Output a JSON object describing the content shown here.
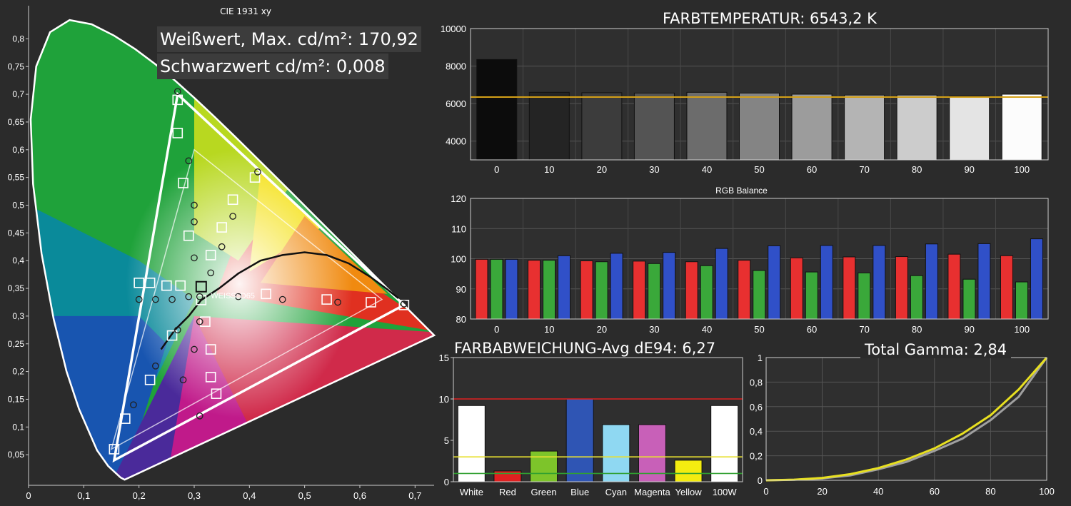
{
  "chart_data": [
    {
      "type": "scatter",
      "title": "CIE 1931 xy",
      "overlay_text": [
        "Weißwert, Max. cd/m²: 170,92",
        "Schwarzwert cd/m²: 0,008"
      ],
      "whitepoint_label": "WEISS: D65",
      "x_ticks": [
        "0",
        "0,1",
        "0,2",
        "0,3",
        "0,4",
        "0,5",
        "0,6",
        "0,7"
      ],
      "y_ticks": [
        "0,05",
        "0,1",
        "0,15",
        "0,2",
        "0,25",
        "0,3",
        "0,35",
        "0,4",
        "0,45",
        "0,5",
        "0,55",
        "0,6",
        "0,65",
        "0,7",
        "0,75",
        "0,8"
      ],
      "xlim": [
        0,
        0.75
      ],
      "ylim": [
        0,
        0.84
      ],
      "target_gamut": [
        [
          0.64,
          0.33
        ],
        [
          0.3,
          0.6
        ],
        [
          0.15,
          0.06
        ]
      ],
      "measured_gamut": [
        [
          0.68,
          0.32
        ],
        [
          0.27,
          0.7
        ],
        [
          0.155,
          0.04
        ]
      ],
      "target_points": [
        [
          0.27,
          0.69
        ],
        [
          0.27,
          0.63
        ],
        [
          0.28,
          0.54
        ],
        [
          0.29,
          0.445
        ],
        [
          0.33,
          0.41
        ],
        [
          0.35,
          0.46
        ],
        [
          0.37,
          0.51
        ],
        [
          0.41,
          0.55
        ],
        [
          0.2,
          0.36
        ],
        [
          0.22,
          0.36
        ],
        [
          0.25,
          0.355
        ],
        [
          0.275,
          0.355
        ],
        [
          0.3127,
          0.329
        ],
        [
          0.43,
          0.34
        ],
        [
          0.54,
          0.33
        ],
        [
          0.62,
          0.325
        ],
        [
          0.68,
          0.32
        ],
        [
          0.26,
          0.265
        ],
        [
          0.32,
          0.29
        ],
        [
          0.33,
          0.24
        ],
        [
          0.33,
          0.19
        ],
        [
          0.34,
          0.16
        ],
        [
          0.22,
          0.185
        ],
        [
          0.175,
          0.115
        ],
        [
          0.155,
          0.06
        ]
      ],
      "measured_points": [
        [
          0.27,
          0.705
        ],
        [
          0.29,
          0.58
        ],
        [
          0.3,
          0.5
        ],
        [
          0.3,
          0.47
        ],
        [
          0.3,
          0.405
        ],
        [
          0.33,
          0.378
        ],
        [
          0.35,
          0.425
        ],
        [
          0.37,
          0.48
        ],
        [
          0.415,
          0.56
        ],
        [
          0.2,
          0.33
        ],
        [
          0.23,
          0.33
        ],
        [
          0.26,
          0.33
        ],
        [
          0.29,
          0.335
        ],
        [
          0.31,
          0.335
        ],
        [
          0.38,
          0.335
        ],
        [
          0.46,
          0.33
        ],
        [
          0.56,
          0.325
        ],
        [
          0.68,
          0.322
        ],
        [
          0.27,
          0.275
        ],
        [
          0.31,
          0.29
        ],
        [
          0.3,
          0.24
        ],
        [
          0.28,
          0.185
        ],
        [
          0.31,
          0.12
        ],
        [
          0.23,
          0.21
        ],
        [
          0.19,
          0.14
        ]
      ],
      "colors": {
        "background": "#2b2b2b",
        "locus": "#ffffff"
      }
    },
    {
      "type": "bar",
      "title": "FARBTEMPERATUR: 6543,2 K",
      "categories": [
        "0",
        "10",
        "20",
        "30",
        "40",
        "50",
        "60",
        "70",
        "80",
        "90",
        "100"
      ],
      "values": [
        8350,
        6600,
        6580,
        6560,
        6600,
        6560,
        6500,
        6450,
        6450,
        6400,
        6500
      ],
      "reference_line": 6350,
      "ylim": [
        3000,
        10000
      ],
      "y_ticks": [
        "4000",
        "6000",
        "8000",
        "10000"
      ],
      "colors": {
        "reference": "#d4a017"
      }
    },
    {
      "type": "bar",
      "title": "RGB Balance",
      "categories": [
        "0",
        "10",
        "20",
        "30",
        "40",
        "50",
        "60",
        "70",
        "80",
        "90",
        "100"
      ],
      "series": [
        {
          "color": "#e83030",
          "values": [
            99.8,
            99.5,
            99.3,
            99.2,
            99.0,
            99.5,
            100.3,
            100.6,
            100.7,
            101.5,
            101.0
          ]
        },
        {
          "color": "#3aa83a",
          "values": [
            99.8,
            99.5,
            99.0,
            98.4,
            97.7,
            96.1,
            95.6,
            95.3,
            94.4,
            93.2,
            92.3
          ]
        },
        {
          "color": "#3050c8",
          "values": [
            99.8,
            101.0,
            101.8,
            102.1,
            103.4,
            104.3,
            104.4,
            104.4,
            104.9,
            105.0,
            106.6
          ]
        }
      ],
      "ylim": [
        80,
        120
      ],
      "y_ticks": [
        "80",
        "90",
        "100",
        "110",
        "120"
      ]
    },
    {
      "type": "bar",
      "title": "FARBABWEICHUNG-Avg dE94: 6,27",
      "categories": [
        "White",
        "Red",
        "Green",
        "Blue",
        "Cyan",
        "Magenta",
        "Yellow",
        "100W"
      ],
      "values": [
        9.2,
        1.3,
        3.7,
        10.0,
        6.9,
        6.9,
        2.6,
        9.2
      ],
      "reference_lines": [
        10,
        3,
        1
      ],
      "ylim": [
        0,
        15
      ],
      "y_ticks": [
        "0",
        "5",
        "10",
        "15"
      ],
      "colors": {
        "White": "#ffffff",
        "Red": "#e02020",
        "Green": "#7dc42a",
        "Blue": "#2f55b4",
        "Cyan": "#8fd8f2",
        "Magenta": "#c860b8",
        "Yellow": "#f4ec10",
        "100W": "#ffffff",
        "line_red": "#e02020",
        "line_yellow": "#e8e030",
        "line_green": "#30a030"
      }
    },
    {
      "type": "line",
      "title": "Total Gamma: 2,84",
      "x": [
        0,
        10,
        20,
        30,
        40,
        50,
        60,
        70,
        80,
        90,
        100
      ],
      "series": [
        {
          "color": "#e8e020",
          "values": [
            0,
            0.005,
            0.02,
            0.05,
            0.1,
            0.17,
            0.26,
            0.38,
            0.53,
            0.74,
            1.0
          ]
        },
        {
          "color": "#a0a0a0",
          "values": [
            0,
            0.004,
            0.015,
            0.04,
            0.09,
            0.15,
            0.24,
            0.34,
            0.49,
            0.68,
            1.0
          ]
        }
      ],
      "xlim": [
        0,
        100
      ],
      "ylim": [
        0,
        1
      ],
      "x_ticks": [
        "0",
        "20",
        "40",
        "60",
        "80",
        "100"
      ],
      "y_ticks": [
        "0",
        "0,2",
        "0,4",
        "0,6",
        "0,8",
        "1"
      ]
    }
  ]
}
